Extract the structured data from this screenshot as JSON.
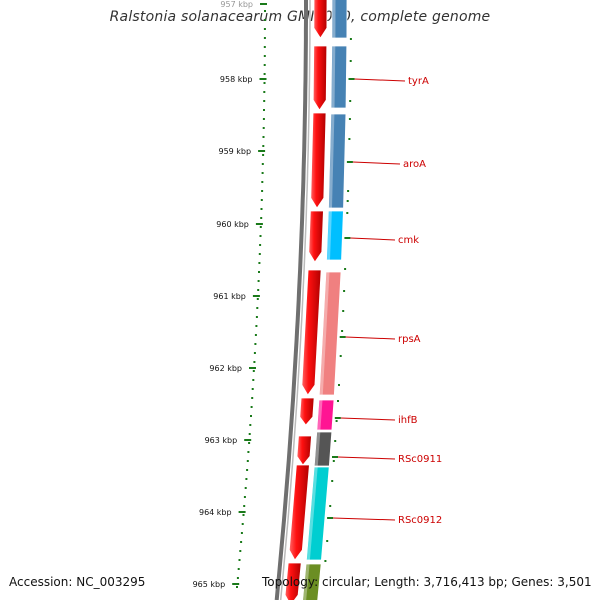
{
  "title": "Ralstonia solanacearum GMI1000, complete genome",
  "accession_text": "Accession: NC_003295",
  "summary_text": "Topology: circular; Length: 3,716,413 bp; Genes: 3,501",
  "scale": {
    "unit_suffix": "kbp",
    "ticks": [
      "957 kbp",
      "958 kbp",
      "959 kbp",
      "960 kbp",
      "961 kbp",
      "962 kbp",
      "963 kbp",
      "964 kbp",
      "965 kbp"
    ]
  },
  "genes": [
    {
      "name": "tyrA",
      "color": "#4682b4"
    },
    {
      "name": "aroA",
      "color": "#4682b4"
    },
    {
      "name": "cmk",
      "color": "#00bfff"
    },
    {
      "name": "rpsA",
      "color": "#f08080"
    },
    {
      "name": "ihfB",
      "color": "#ff1493"
    },
    {
      "name": "RSc0911",
      "color": "#555555"
    },
    {
      "name": "RSc0912",
      "color": "#00ced1"
    }
  ],
  "colors": {
    "strand_arrows": "#ee0000",
    "backbone": "#777777",
    "ticks": "#1a7a1a",
    "labels": "#cc0000",
    "lower_segment": "#6b8e23"
  }
}
